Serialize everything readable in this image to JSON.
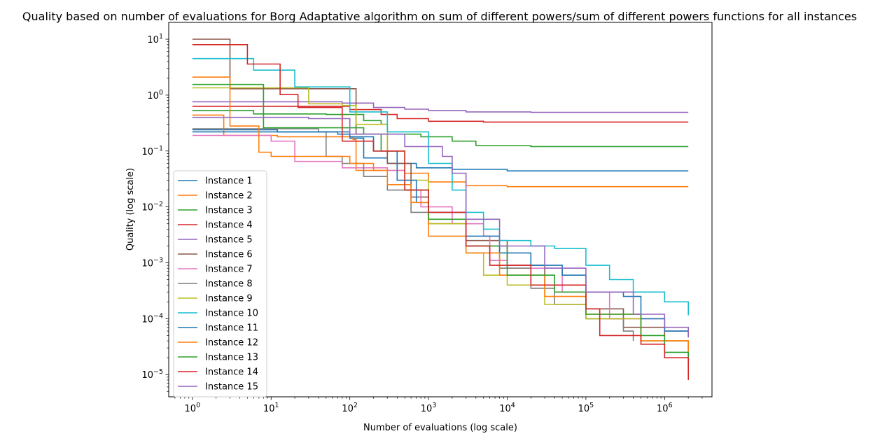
{
  "chart_data": {
    "type": "line",
    "title": "Quality based on number of evaluations for Borg Adaptative algorithm on sum of different powers/sum of different powers functions for all instances",
    "xlabel": "Number of evaluations (log scale)",
    "ylabel": "Quality (log scale)",
    "xscale": "log",
    "yscale": "log",
    "xlim": [
      0.5,
      4000000
    ],
    "ylim": [
      4e-06,
      20
    ],
    "grid": false,
    "legend_position": "center-left",
    "x_ticks": [
      {
        "base": "10",
        "exp": "0",
        "value": 1
      },
      {
        "base": "10",
        "exp": "1",
        "value": 10
      },
      {
        "base": "10",
        "exp": "2",
        "value": 100
      },
      {
        "base": "10",
        "exp": "3",
        "value": 1000
      },
      {
        "base": "10",
        "exp": "4",
        "value": 10000
      },
      {
        "base": "10",
        "exp": "5",
        "value": 100000
      },
      {
        "base": "10",
        "exp": "6",
        "value": 1000000
      }
    ],
    "y_ticks": [
      {
        "base": "10",
        "exp": "1",
        "value": 10
      },
      {
        "base": "10",
        "exp": "0",
        "value": 1
      },
      {
        "base": "10",
        "exp": "−1",
        "value": 0.1
      },
      {
        "base": "10",
        "exp": "−2",
        "value": 0.01
      },
      {
        "base": "10",
        "exp": "−3",
        "value": 0.001
      },
      {
        "base": "10",
        "exp": "−4",
        "value": 0.0001
      },
      {
        "base": "10",
        "exp": "−5",
        "value": 1e-05
      }
    ],
    "series": [
      {
        "name": "Instance 1",
        "color": "#1f77b4",
        "points": [
          [
            1,
            0.24
          ],
          [
            12,
            0.22
          ],
          [
            70,
            0.2
          ],
          [
            100,
            0.17
          ],
          [
            150,
            0.075
          ],
          [
            300,
            0.06
          ],
          [
            700,
            0.05
          ],
          [
            2000,
            0.047
          ],
          [
            10000,
            0.044
          ],
          [
            2000000,
            0.044
          ]
        ]
      },
      {
        "name": "Instance 2",
        "color": "#ff7f0e",
        "points": [
          [
            1,
            0.44
          ],
          [
            2,
            0.44
          ],
          [
            2.5,
            0.19
          ],
          [
            12,
            0.18
          ],
          [
            110,
            0.16
          ],
          [
            120,
            0.045
          ],
          [
            500,
            0.04
          ],
          [
            1000,
            0.028
          ],
          [
            3000,
            0.024
          ],
          [
            10000,
            0.023
          ],
          [
            2000000,
            0.023
          ]
        ]
      },
      {
        "name": "Instance 3",
        "color": "#2ca02c",
        "points": [
          [
            1,
            0.53
          ],
          [
            6,
            0.46
          ],
          [
            50,
            0.45
          ],
          [
            150,
            0.35
          ],
          [
            250,
            0.3
          ],
          [
            300,
            0.2
          ],
          [
            800,
            0.18
          ],
          [
            2000,
            0.15
          ],
          [
            4000,
            0.125
          ],
          [
            20000,
            0.12
          ],
          [
            2000000,
            0.12
          ]
        ]
      },
      {
        "name": "Instance 4",
        "color": "#d62728",
        "points": [
          [
            1,
            0.63
          ],
          [
            100,
            0.55
          ],
          [
            250,
            0.45
          ],
          [
            400,
            0.38
          ],
          [
            1000,
            0.34
          ],
          [
            5000,
            0.33
          ],
          [
            2000000,
            0.33
          ]
        ]
      },
      {
        "name": "Instance 5",
        "color": "#9467bd",
        "points": [
          [
            1,
            0.76
          ],
          [
            80,
            0.72
          ],
          [
            200,
            0.6
          ],
          [
            500,
            0.56
          ],
          [
            1000,
            0.53
          ],
          [
            3000,
            0.5
          ],
          [
            20000,
            0.49
          ],
          [
            2000000,
            0.49
          ]
        ]
      },
      {
        "name": "Instance 6",
        "color": "#8c564b",
        "points": [
          [
            1,
            10
          ],
          [
            2,
            10
          ],
          [
            3,
            1.3
          ],
          [
            60,
            1.3
          ],
          [
            120,
            0.2
          ],
          [
            300,
            0.06
          ],
          [
            600,
            0.015
          ],
          [
            1000,
            0.005
          ],
          [
            3000,
            0.0025
          ],
          [
            10000,
            0.0009
          ],
          [
            30000,
            0.0004
          ],
          [
            100000,
            0.00015
          ],
          [
            300000,
            7e-05
          ],
          [
            1000000,
            4e-05
          ],
          [
            2000000,
            2.7e-05
          ]
        ]
      },
      {
        "name": "Instance 7",
        "color": "#e377c2",
        "points": [
          [
            1,
            0.19
          ],
          [
            4,
            0.19
          ],
          [
            10,
            0.15
          ],
          [
            20,
            0.065
          ],
          [
            80,
            0.05
          ],
          [
            300,
            0.045
          ],
          [
            500,
            0.02
          ],
          [
            800,
            0.01
          ],
          [
            2000,
            0.005
          ],
          [
            5000,
            0.003
          ],
          [
            6000,
            0.0011
          ],
          [
            10000,
            0.0008
          ],
          [
            50000,
            0.0003
          ],
          [
            200000,
            0.0001
          ],
          [
            1000000,
            6e-05
          ],
          [
            2000000,
            4.7e-05
          ]
        ]
      },
      {
        "name": "Instance 8",
        "color": "#7f7f7f",
        "points": [
          [
            1,
            0.25
          ],
          [
            40,
            0.22
          ],
          [
            50,
            0.08
          ],
          [
            80,
            0.06
          ],
          [
            150,
            0.035
          ],
          [
            300,
            0.02
          ],
          [
            600,
            0.008
          ],
          [
            1000,
            0.005
          ],
          [
            3000,
            0.002
          ],
          [
            8000,
            0.0008
          ],
          [
            20000,
            0.00035
          ],
          [
            40000,
            0.00018
          ],
          [
            100000,
            0.0001
          ],
          [
            300000,
            6e-05
          ],
          [
            400000,
            4e-05
          ]
        ]
      },
      {
        "name": "Instance 9",
        "color": "#bcbd22",
        "points": [
          [
            1,
            1.35
          ],
          [
            8,
            1.35
          ],
          [
            30,
            0.7
          ],
          [
            80,
            0.65
          ],
          [
            120,
            0.3
          ],
          [
            300,
            0.1
          ],
          [
            500,
            0.03
          ],
          [
            1000,
            0.005
          ],
          [
            3000,
            0.0015
          ],
          [
            5000,
            0.0006
          ],
          [
            10000,
            0.0004
          ],
          [
            30000,
            0.00018
          ],
          [
            100000,
            0.0001
          ],
          [
            500000,
            4e-05
          ],
          [
            2000000,
            2.2e-05
          ]
        ]
      },
      {
        "name": "Instance 10",
        "color": "#17becf",
        "points": [
          [
            1,
            4.5
          ],
          [
            4,
            4.5
          ],
          [
            6,
            2.8
          ],
          [
            15,
            2.8
          ],
          [
            20,
            1.4
          ],
          [
            70,
            1.4
          ],
          [
            100,
            0.5
          ],
          [
            300,
            0.22
          ],
          [
            1000,
            0.06
          ],
          [
            2000,
            0.02
          ],
          [
            3000,
            0.008
          ],
          [
            5000,
            0.004
          ],
          [
            8000,
            0.0025
          ],
          [
            20000,
            0.002
          ],
          [
            40000,
            0.0018
          ],
          [
            100000,
            0.0009
          ],
          [
            200000,
            0.0005
          ],
          [
            400000,
            0.0003
          ],
          [
            1000000,
            0.0002
          ],
          [
            2000000,
            0.000115
          ]
        ]
      },
      {
        "name": "Instance 11",
        "color": "#1f77b4",
        "points": [
          [
            1,
            0.22
          ],
          [
            100,
            0.18
          ],
          [
            200,
            0.1
          ],
          [
            400,
            0.03
          ],
          [
            700,
            0.012
          ],
          [
            1000,
            0.008
          ],
          [
            3000,
            0.003
          ],
          [
            8000,
            0.0015
          ],
          [
            20000,
            0.0009
          ],
          [
            50000,
            0.0006
          ],
          [
            100000,
            0.0003
          ],
          [
            300000,
            0.00025
          ],
          [
            500000,
            0.0001
          ],
          [
            1000000,
            6e-05
          ],
          [
            2000000,
            5e-05
          ]
        ]
      },
      {
        "name": "Instance 12",
        "color": "#ff7f0e",
        "points": [
          [
            1,
            2.1
          ],
          [
            2,
            2.1
          ],
          [
            3,
            0.28
          ],
          [
            6,
            0.28
          ],
          [
            7,
            0.095
          ],
          [
            10,
            0.08
          ],
          [
            100,
            0.06
          ],
          [
            200,
            0.045
          ],
          [
            300,
            0.025
          ],
          [
            600,
            0.012
          ],
          [
            1000,
            0.003
          ],
          [
            3000,
            0.0015
          ],
          [
            8000,
            0.0006
          ],
          [
            30000,
            0.00025
          ],
          [
            100000,
            0.00012
          ],
          [
            500000,
            4e-05
          ],
          [
            2000000,
            2.5e-05
          ]
        ]
      },
      {
        "name": "Instance 13",
        "color": "#2ca02c",
        "points": [
          [
            1,
            1.55
          ],
          [
            7,
            1.55
          ],
          [
            8,
            0.26
          ],
          [
            50,
            0.26
          ],
          [
            150,
            0.2
          ],
          [
            250,
            0.1
          ],
          [
            500,
            0.02
          ],
          [
            1000,
            0.006
          ],
          [
            3000,
            0.002
          ],
          [
            10000,
            0.0006
          ],
          [
            40000,
            0.0003
          ],
          [
            100000,
            0.00012
          ],
          [
            500000,
            5e-05
          ],
          [
            1000000,
            2.5e-05
          ],
          [
            2000000,
            1.2e-05
          ]
        ]
      },
      {
        "name": "Instance 14",
        "color": "#d62728",
        "points": [
          [
            1,
            8
          ],
          [
            4,
            8
          ],
          [
            5,
            3.6
          ],
          [
            12,
            3.6
          ],
          [
            13,
            1.02
          ],
          [
            20,
            1.02
          ],
          [
            22,
            0.6
          ],
          [
            70,
            0.6
          ],
          [
            80,
            0.15
          ],
          [
            200,
            0.1
          ],
          [
            500,
            0.02
          ],
          [
            1000,
            0.008
          ],
          [
            3000,
            0.002
          ],
          [
            6000,
            0.0009
          ],
          [
            20000,
            0.0004
          ],
          [
            100000,
            0.00015
          ],
          [
            150000,
            5e-05
          ],
          [
            500000,
            3.5e-05
          ],
          [
            1000000,
            2e-05
          ],
          [
            2000000,
            8e-06
          ]
        ]
      },
      {
        "name": "Instance 15",
        "color": "#9467bd",
        "points": [
          [
            1,
            0.4
          ],
          [
            30,
            0.38
          ],
          [
            100,
            0.2
          ],
          [
            500,
            0.12
          ],
          [
            1500,
            0.08
          ],
          [
            2000,
            0.04
          ],
          [
            3000,
            0.006
          ],
          [
            8000,
            0.002
          ],
          [
            30000,
            0.0008
          ],
          [
            100000,
            0.0003
          ],
          [
            400000,
            0.00012
          ],
          [
            1000000,
            7e-05
          ],
          [
            2000000,
            4.6e-05
          ]
        ]
      }
    ]
  }
}
